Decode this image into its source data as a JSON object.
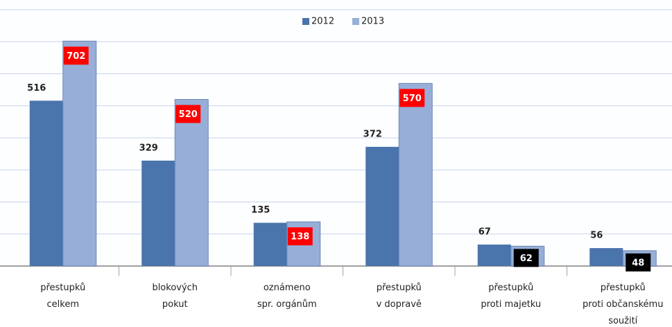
{
  "chart_data": {
    "type": "bar",
    "categories": [
      [
        "přestupků",
        "celkem"
      ],
      [
        "blokových",
        "pokut"
      ],
      [
        "oznámeno",
        "spr. orgánům"
      ],
      [
        "přestupků",
        "v dopravě"
      ],
      [
        "přestupků",
        "proti majetku"
      ],
      [
        "přestupků",
        "proti občanskému",
        "soužití"
      ]
    ],
    "series": [
      {
        "name": "2012",
        "color": "#4a74ac",
        "values": [
          516,
          329,
          135,
          372,
          67,
          56
        ]
      },
      {
        "name": "2013",
        "color": "#97afd8",
        "values": [
          702,
          520,
          138,
          570,
          62,
          48
        ],
        "label_box_colors": [
          "#ff0000",
          "#ff0000",
          "#ff0000",
          "#ff0000",
          "#000000",
          "#000000"
        ]
      }
    ],
    "ylim": [
      0,
      800
    ],
    "yticks": [
      0,
      100,
      200,
      300,
      400,
      500,
      600,
      700,
      800
    ],
    "grid": true,
    "legend": "top"
  }
}
